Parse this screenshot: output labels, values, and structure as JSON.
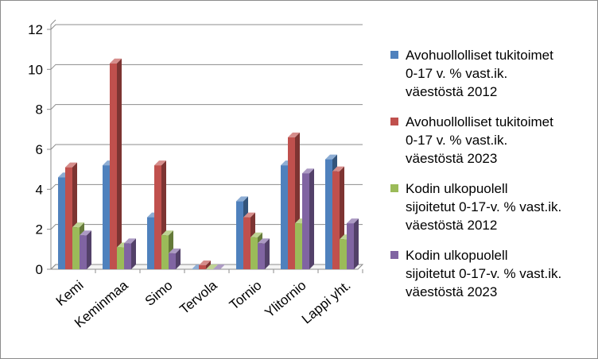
{
  "chart_data": {
    "type": "bar",
    "title": "",
    "xlabel": "",
    "ylabel": "",
    "ylim": [
      0,
      12
    ],
    "yticks": [
      0,
      2,
      4,
      6,
      8,
      10,
      12
    ],
    "grid": true,
    "legend_position": "right",
    "categories": [
      "Kemi",
      "Keminmaa",
      "Simo",
      "Tervola",
      "Tornio",
      "Ylitornio",
      "Lappi yht."
    ],
    "series": [
      {
        "name": "Avohuollolliset tukitoimet 0-17 v. % vast.ik. väestöstä 2012",
        "legend_lines": [
          "Avohuollolliset tukitoimet",
          "0-17 v. % vast.ik.",
          "väestöstä 2012"
        ],
        "color": "#4F81BD",
        "values": [
          4.6,
          5.2,
          2.6,
          0.0,
          3.4,
          5.2,
          5.5
        ]
      },
      {
        "name": "Avohuollolliset tukitoimet 0-17 v. % vast.ik. väestöstä 2023",
        "legend_lines": [
          "Avohuollolliset tukitoimet",
          "0-17 v. % vast.ik.",
          "väestöstä 2023"
        ],
        "color": "#C0504D",
        "values": [
          5.1,
          10.3,
          5.2,
          0.2,
          2.6,
          6.6,
          4.9
        ]
      },
      {
        "name": "Kodin ulkopuolell sijoitetut 0-17-v. % vast.ik. väestöstä 2012",
        "legend_lines": [
          "Kodin ulkopuolell",
          "sijoitetut 0-17-v. % vast.ik.",
          "väestöstä 2012"
        ],
        "color": "#9BBB59",
        "values": [
          2.1,
          1.1,
          1.7,
          0.0,
          1.6,
          2.3,
          1.5
        ]
      },
      {
        "name": "Kodin ulkopuolell sijoitetut 0-17-v. % vast.ik. väestöstä 2023",
        "legend_lines": [
          "Kodin ulkopuolell",
          "sijoitetut 0-17-v. % vast.ik.",
          "väestöstä 2023"
        ],
        "color": "#8064A2",
        "values": [
          1.7,
          1.3,
          0.8,
          0.0,
          1.3,
          4.8,
          2.3
        ]
      }
    ]
  }
}
